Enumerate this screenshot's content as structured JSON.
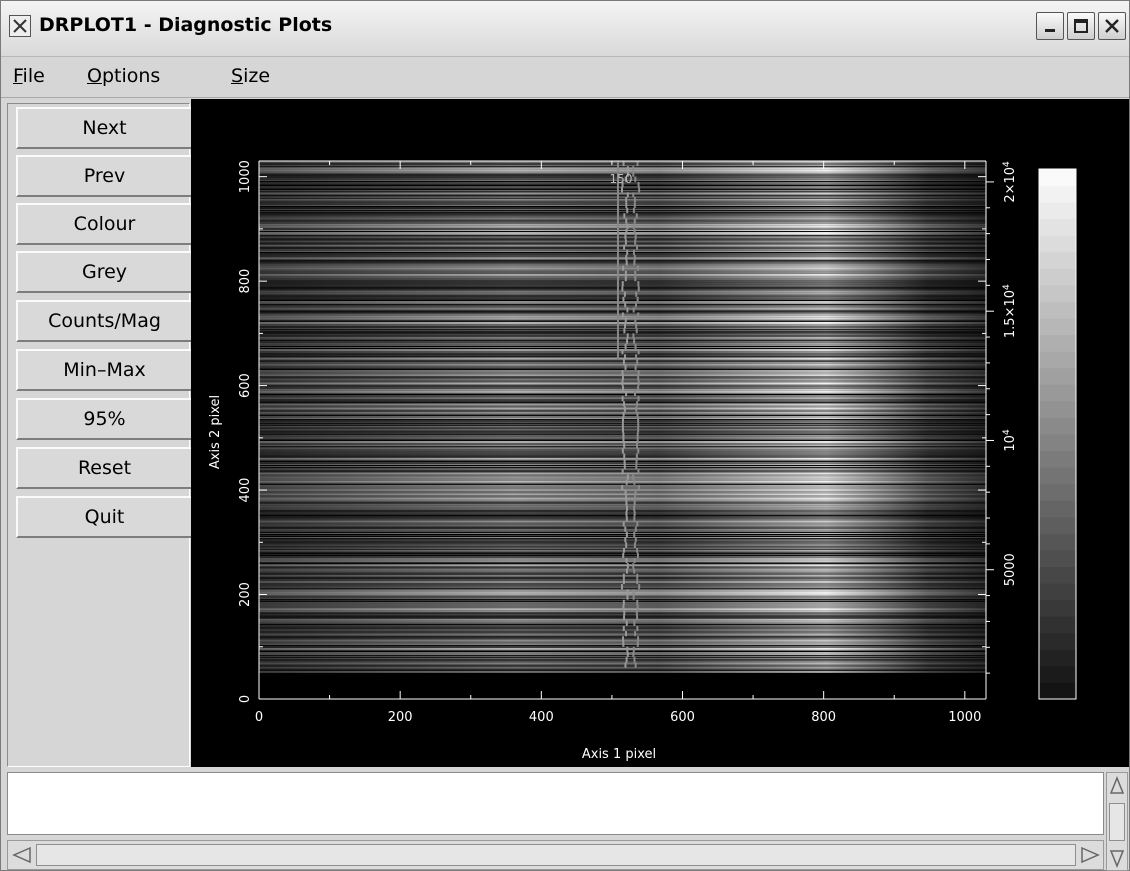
{
  "window": {
    "title": "DRPLOT1 - Diagnostic Plots",
    "controls": [
      "minimize-icon",
      "maximize-icon",
      "close-icon"
    ]
  },
  "menubar": {
    "items": [
      {
        "underline": "F",
        "rest": "ile"
      },
      {
        "underline": "O",
        "rest": "ptions"
      },
      {
        "underline": "S",
        "rest": "ize"
      }
    ]
  },
  "sidebar": {
    "buttons": [
      "Next",
      "Prev",
      "Colour",
      "Grey",
      "Counts/Mag",
      "Min–Max",
      "95%",
      "Reset",
      "Quit"
    ]
  },
  "plot": {
    "xlabel": "Axis 1 pixel",
    "ylabel": "Axis 2 pixel",
    "xticks": [
      "0",
      "200",
      "400",
      "600",
      "800",
      "1000"
    ],
    "yticks": [
      "0",
      "200",
      "400",
      "600",
      "800",
      "1000"
    ],
    "colorbar_ticks": [
      "5000",
      "10",
      "1.5×10",
      "2×10"
    ],
    "colorbar_exponents": [
      "",
      "4",
      "4",
      "4"
    ],
    "overlay_label": "150"
  },
  "chart_data": {
    "type": "heatmap",
    "xlabel": "Axis 1 pixel",
    "ylabel": "Axis 2 pixel",
    "xlim": [
      0,
      1030
    ],
    "ylim": [
      0,
      1030
    ],
    "xticks": [
      0,
      200,
      400,
      600,
      800,
      1000
    ],
    "yticks": [
      0,
      200,
      400,
      600,
      800,
      1000
    ],
    "colorbar": {
      "min": 0,
      "max": 20500,
      "ticks": [
        5000,
        10000,
        15000,
        20000
      ],
      "scale": "greyscale"
    },
    "data_rows": [
      50,
      1030
    ],
    "trace_column": [
      510,
      540
    ],
    "grid": false
  },
  "output": {
    "text": ""
  }
}
